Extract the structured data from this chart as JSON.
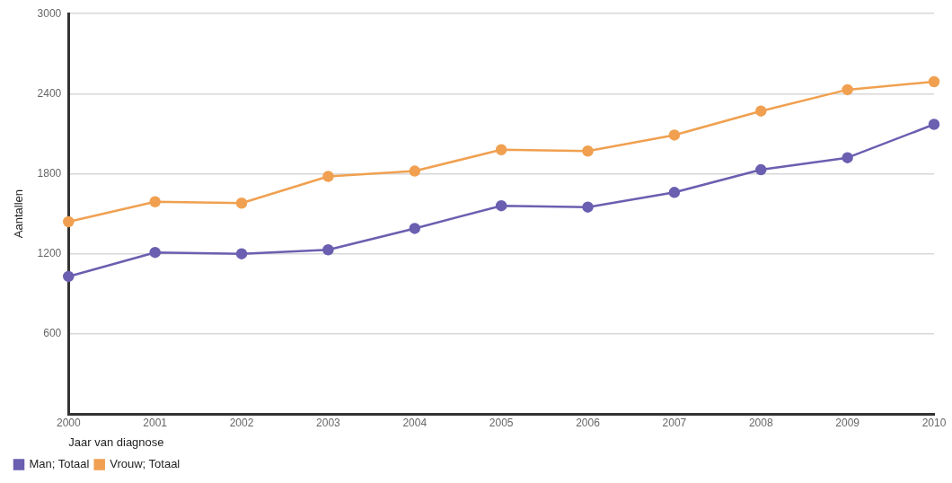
{
  "chart_data": {
    "type": "line",
    "ylabel": "Aantallen",
    "xlabel": "Jaar van diagnose",
    "categories": [
      "2000",
      "2001",
      "2002",
      "2003",
      "2004",
      "2005",
      "2006",
      "2007",
      "2008",
      "2009",
      "2010"
    ],
    "series": [
      {
        "name": "Man; Totaal",
        "color": "#6a5fb0",
        "values": [
          1030,
          1210,
          1200,
          1230,
          1390,
          1560,
          1550,
          1660,
          1830,
          1920,
          2170
        ]
      },
      {
        "name": "Vrouw; Totaal",
        "color": "#f0a050",
        "values": [
          1440,
          1590,
          1580,
          1780,
          1820,
          1980,
          1970,
          2090,
          2270,
          2430,
          2490
        ]
      }
    ],
    "ylim": [
      0,
      3000
    ],
    "yticks": [
      600,
      1200,
      1800,
      2400,
      3000
    ],
    "grid": "y",
    "legend": "bottom left",
    "marker": "circle",
    "line_style": "solid"
  }
}
